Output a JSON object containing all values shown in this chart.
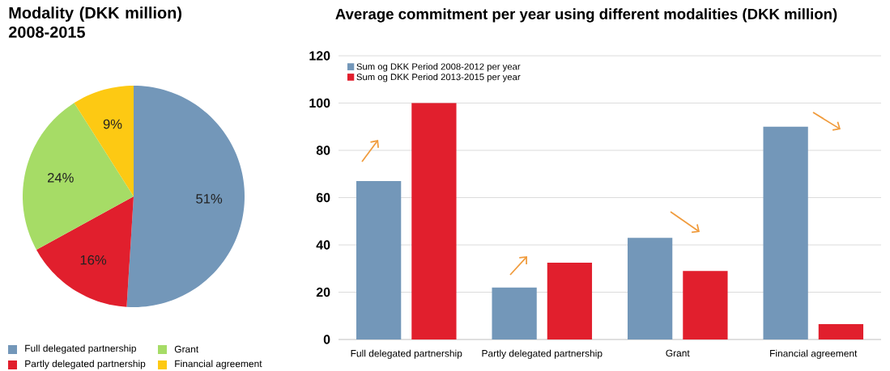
{
  "chart_data": [
    {
      "type": "pie",
      "title": "Modality (DKK million) 2008-2015",
      "categories": [
        "Full delegated partnership",
        "Partly delegated partnership",
        "Grant",
        "Financial agreement"
      ],
      "values": [
        51,
        16,
        24,
        9
      ],
      "value_labels": [
        "51%",
        "16%",
        "24%",
        "9%"
      ],
      "colors": [
        "#7397b9",
        "#e11f2d",
        "#a6dc66",
        "#fdc913"
      ],
      "legend": "bottom"
    },
    {
      "type": "bar",
      "title": "Average commitment per year using different modalities (DKK million)",
      "categories": [
        "Full delegated partnership",
        "Partly delegated partnership",
        "Grant",
        "Financial agreement"
      ],
      "series": [
        {
          "name": "Sum og DKK Period 2008-2012 per year",
          "color": "#7397b9",
          "values": [
            67,
            22,
            43,
            90
          ]
        },
        {
          "name": "Sum og DKK Period 2013-2015 per year",
          "color": "#e11f2d",
          "values": [
            100,
            32.5,
            29,
            6.5
          ]
        }
      ],
      "ylim": [
        0,
        120
      ],
      "yticks": [
        0,
        20,
        40,
        60,
        80,
        100,
        120
      ],
      "grid": "y",
      "legend": "top left"
    }
  ]
}
